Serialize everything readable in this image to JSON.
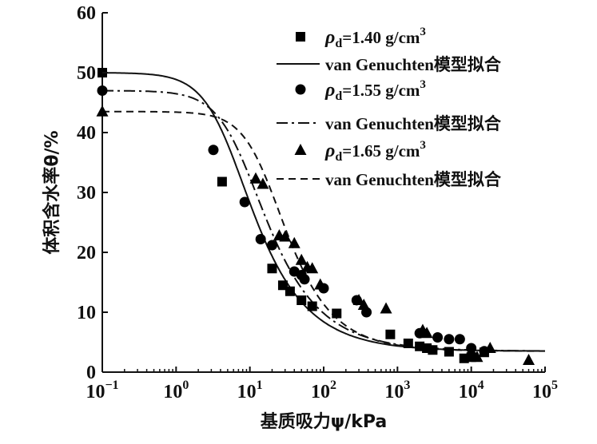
{
  "chart_data": {
    "type": "scatter",
    "xscale": "log",
    "xlim": [
      0.1,
      100000
    ],
    "ylim": [
      0,
      60
    ],
    "xlabel": "基质吸力ψ/kPa",
    "ylabel": "体积含水率θ/%",
    "x_ticks": [
      {
        "value": 0.1,
        "base": "10",
        "exp": "−1"
      },
      {
        "value": 1,
        "base": "10",
        "exp": "0"
      },
      {
        "value": 10,
        "base": "10",
        "exp": "1"
      },
      {
        "value": 100,
        "base": "10",
        "exp": "2"
      },
      {
        "value": 1000,
        "base": "10",
        "exp": "3"
      },
      {
        "value": 10000,
        "base": "10",
        "exp": "4"
      },
      {
        "value": 100000,
        "base": "10",
        "exp": "5"
      }
    ],
    "y_ticks": [
      0,
      10,
      20,
      30,
      40,
      50,
      60
    ],
    "legend": [
      {
        "kind": "square",
        "prefix": "ρ",
        "sub": "d",
        "text": "=1.40 g/cm",
        "sup": "3"
      },
      {
        "kind": "solid",
        "text": "van Genuchten模型拟合"
      },
      {
        "kind": "circle",
        "prefix": "ρ",
        "sub": "d",
        "text": "=1.55 g/cm",
        "sup": "3"
      },
      {
        "kind": "dashdot",
        "text": "van Genuchten模型拟合"
      },
      {
        "kind": "triangle",
        "prefix": "ρ",
        "sub": "d",
        "text": "=1.65 g/cm",
        "sup": "3"
      },
      {
        "kind": "dashed",
        "text": "van Genuchten模型拟合"
      }
    ],
    "series": [
      {
        "name": "ρd=1.40 g/cm3",
        "marker": "square",
        "points": [
          [
            0.1,
            50
          ],
          [
            4.2,
            31.8
          ],
          [
            20,
            17.3
          ],
          [
            28,
            14.5
          ],
          [
            35,
            13.5
          ],
          [
            50,
            12
          ],
          [
            70,
            11
          ],
          [
            150,
            9.8
          ],
          [
            800,
            6.3
          ],
          [
            1400,
            4.8
          ],
          [
            2000,
            4.3
          ],
          [
            2500,
            4
          ],
          [
            3000,
            3.7
          ],
          [
            5000,
            3.4
          ],
          [
            8000,
            2.3
          ],
          [
            10000,
            2.5
          ],
          [
            15000,
            3.3
          ]
        ]
      },
      {
        "name": "ρd=1.55 g/cm3",
        "marker": "circle",
        "points": [
          [
            0.1,
            47
          ],
          [
            3.2,
            37.1
          ],
          [
            8.5,
            28.4
          ],
          [
            14,
            22.2
          ],
          [
            20,
            21.2
          ],
          [
            40,
            16.8
          ],
          [
            50,
            16.2
          ],
          [
            55,
            15.5
          ],
          [
            100,
            14
          ],
          [
            280,
            12
          ],
          [
            380,
            10
          ],
          [
            2000,
            6.5
          ],
          [
            3500,
            5.8
          ],
          [
            5000,
            5.5
          ],
          [
            7000,
            5.5
          ],
          [
            10000,
            4
          ],
          [
            15000,
            3.5
          ]
        ]
      },
      {
        "name": "ρd=1.65 g/cm3",
        "marker": "triangle",
        "points": [
          [
            0.1,
            43.5
          ],
          [
            12,
            32.3
          ],
          [
            15,
            31.4
          ],
          [
            25,
            22.8
          ],
          [
            30,
            22.6
          ],
          [
            40,
            21.5
          ],
          [
            50,
            18.7
          ],
          [
            60,
            17.5
          ],
          [
            70,
            17.3
          ],
          [
            90,
            14.6
          ],
          [
            300,
            12
          ],
          [
            350,
            11.2
          ],
          [
            700,
            10.6
          ],
          [
            2200,
            7
          ],
          [
            2500,
            6.5
          ],
          [
            10000,
            3.5
          ],
          [
            12000,
            2.5
          ],
          [
            18000,
            4
          ],
          [
            60000,
            2
          ]
        ]
      }
    ],
    "fits": [
      {
        "name": "van Genuchten模型拟合 (ρd=1.40)",
        "style": "solid",
        "params": {
          "theta_r": 3.5,
          "theta_s": 50,
          "alpha": 0.2,
          "n": 1.75
        }
      },
      {
        "name": "van Genuchten模型拟合 (ρd=1.55)",
        "style": "dashdot",
        "params": {
          "theta_r": 3.5,
          "theta_s": 47,
          "alpha": 0.13,
          "n": 1.75
        }
      },
      {
        "name": "van Genuchten模型拟合 (ρd=1.65)",
        "style": "dashed",
        "params": {
          "theta_r": 3.5,
          "theta_s": 43.5,
          "alpha": 0.06,
          "n": 1.9
        }
      }
    ]
  }
}
